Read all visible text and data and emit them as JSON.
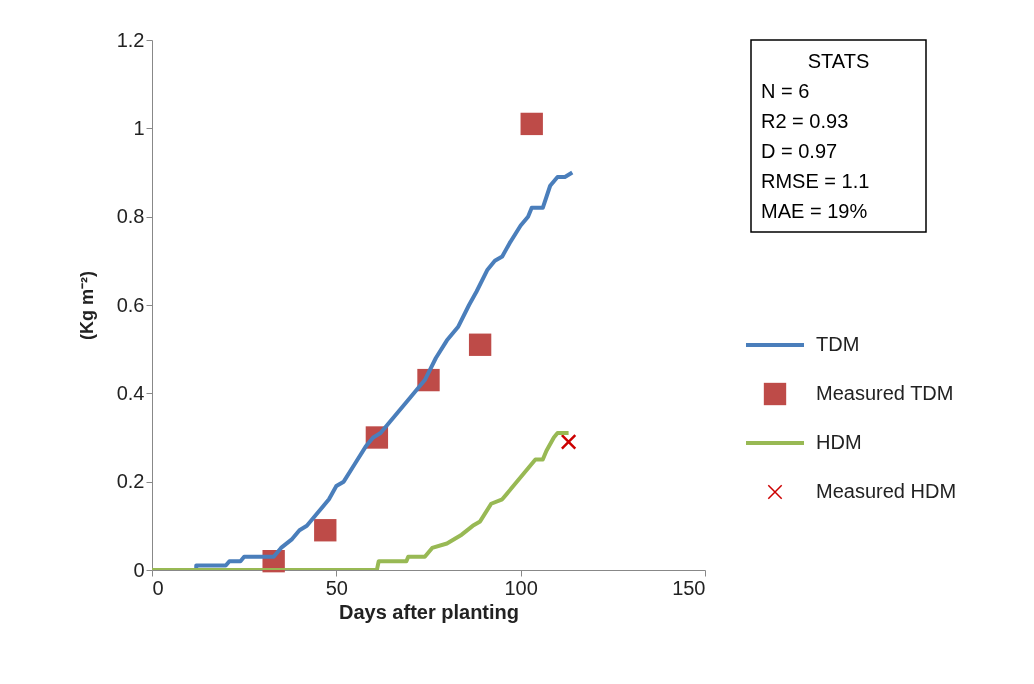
{
  "chart_data": {
    "type": "line",
    "xlabel": "Days after planting",
    "ylabel": "(Kg m⁻²)",
    "xlim": [
      0,
      150
    ],
    "xticks": [
      0,
      50,
      100,
      150
    ],
    "ylim": [
      0,
      1.2
    ],
    "yticks": [
      0,
      0.2,
      0.4,
      0.6,
      0.8,
      1,
      1.2
    ],
    "grid": false,
    "legend": "right",
    "annotations": [
      "STATS",
      "N = 6",
      "R2 = 0.93",
      "D = 0.97",
      "RMSE = 1.1",
      "MAE = 19%"
    ],
    "series": [
      {
        "name": "TDM",
        "color": "#4a7ebb",
        "marker": "none",
        "x": [
          0,
          12,
          12,
          20,
          21,
          24,
          25,
          33,
          35,
          38,
          40,
          42,
          45,
          48,
          50,
          52,
          55,
          58,
          60,
          62,
          65,
          70,
          74,
          77,
          80,
          83,
          86,
          88,
          91,
          93,
          95,
          97,
          100,
          102,
          103,
          106,
          108,
          110,
          112,
          114
        ],
        "values": [
          0,
          0,
          0.01,
          0.01,
          0.02,
          0.02,
          0.03,
          0.03,
          0.05,
          0.07,
          0.09,
          0.1,
          0.13,
          0.16,
          0.19,
          0.2,
          0.24,
          0.28,
          0.3,
          0.31,
          0.34,
          0.39,
          0.43,
          0.48,
          0.52,
          0.55,
          0.6,
          0.63,
          0.68,
          0.7,
          0.71,
          0.74,
          0.78,
          0.8,
          0.82,
          0.82,
          0.87,
          0.89,
          0.89,
          0.9
        ]
      },
      {
        "name": "Measured TDM",
        "type": "scatter",
        "color": "#be4b48",
        "marker": "square",
        "x": [
          33,
          47,
          61,
          75,
          89,
          103
        ],
        "values": [
          0.02,
          0.09,
          0.3,
          0.43,
          0.51,
          1.01
        ]
      },
      {
        "name": "HDM",
        "color": "#98b954",
        "marker": "none",
        "x": [
          0,
          61,
          61.5,
          69,
          69.5,
          74,
          76,
          80,
          84,
          87,
          89,
          92,
          95,
          98,
          101,
          104,
          106,
          107,
          109,
          110,
          113
        ],
        "values": [
          0,
          0,
          0.02,
          0.02,
          0.03,
          0.03,
          0.05,
          0.06,
          0.08,
          0.1,
          0.11,
          0.15,
          0.16,
          0.19,
          0.22,
          0.25,
          0.25,
          0.27,
          0.3,
          0.31,
          0.31
        ]
      },
      {
        "name": "Measured HDM",
        "type": "scatter",
        "color": "#cc0000",
        "marker": "cross",
        "x": [
          113
        ],
        "values": [
          0.29
        ]
      }
    ]
  }
}
